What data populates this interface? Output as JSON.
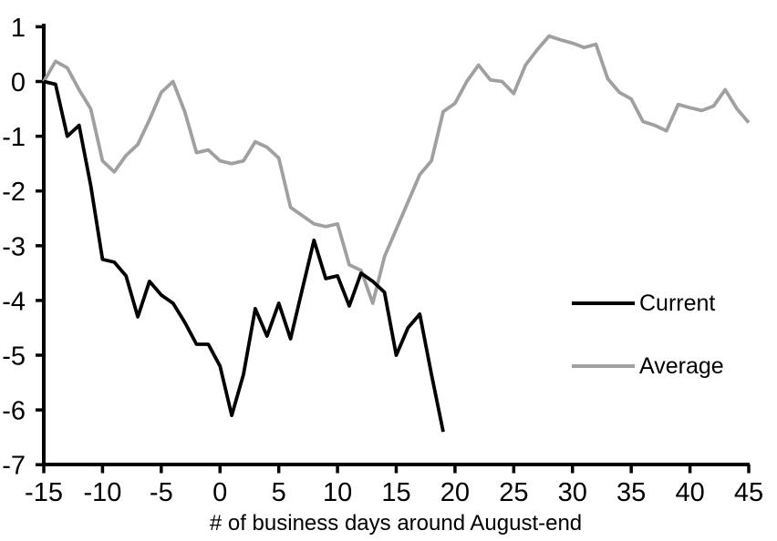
{
  "chart_data": {
    "type": "line",
    "title": "",
    "xlabel": "# of business days around August-end",
    "ylabel": "",
    "xlim": [
      -15,
      45
    ],
    "ylim": [
      -7,
      1
    ],
    "x_ticks": [
      -15,
      -10,
      -5,
      0,
      5,
      10,
      15,
      20,
      25,
      30,
      35,
      40,
      45
    ],
    "y_ticks": [
      1,
      0,
      -1,
      -2,
      -3,
      -4,
      -5,
      -6,
      -7
    ],
    "grid": false,
    "legend_position": "right-middle",
    "series": [
      {
        "name": "Current",
        "color": "#000000",
        "x": [
          -15,
          -14,
          -13,
          -12,
          -11,
          -10,
          -9,
          -8,
          -7,
          -6,
          -5,
          -4,
          -3,
          -2,
          -1,
          0,
          1,
          2,
          3,
          4,
          5,
          6,
          7,
          8,
          9,
          10,
          11,
          12,
          13,
          14,
          15,
          16,
          17,
          18,
          19
        ],
        "values": [
          0,
          -0.05,
          -1.0,
          -0.8,
          -1.9,
          -3.25,
          -3.3,
          -3.55,
          -4.3,
          -3.65,
          -3.9,
          -4.05,
          -4.4,
          -4.8,
          -4.8,
          -5.2,
          -6.1,
          -5.35,
          -4.15,
          -4.65,
          -4.05,
          -4.7,
          -3.8,
          -2.9,
          -3.6,
          -3.55,
          -4.1,
          -3.5,
          -3.65,
          -3.85,
          -5.0,
          -4.5,
          -4.25,
          -5.35,
          -6.4
        ]
      },
      {
        "name": "Average",
        "color": "#a0a0a0",
        "x": [
          -15,
          -14,
          -13,
          -12,
          -11,
          -10,
          -9,
          -8,
          -7,
          -6,
          -5,
          -4,
          -3,
          -2,
          -1,
          0,
          1,
          2,
          3,
          4,
          5,
          6,
          7,
          8,
          9,
          10,
          11,
          12,
          13,
          14,
          15,
          16,
          17,
          18,
          19,
          20,
          21,
          22,
          23,
          24,
          25,
          26,
          27,
          28,
          29,
          30,
          31,
          32,
          33,
          34,
          35,
          36,
          37,
          38,
          39,
          40,
          41,
          42,
          43,
          44,
          45
        ],
        "values": [
          0,
          0.37,
          0.25,
          -0.15,
          -0.5,
          -1.45,
          -1.65,
          -1.35,
          -1.15,
          -0.7,
          -0.2,
          0.0,
          -0.55,
          -1.3,
          -1.25,
          -1.45,
          -1.5,
          -1.45,
          -1.1,
          -1.2,
          -1.4,
          -2.3,
          -2.45,
          -2.6,
          -2.65,
          -2.6,
          -3.35,
          -3.45,
          -4.05,
          -3.2,
          -2.7,
          -2.2,
          -1.7,
          -1.45,
          -0.55,
          -0.4,
          0.0,
          0.3,
          0.03,
          0.0,
          -0.22,
          0.3,
          0.58,
          0.83,
          0.76,
          0.7,
          0.62,
          0.68,
          0.05,
          -0.2,
          -0.32,
          -0.73,
          -0.8,
          -0.9,
          -0.42,
          -0.48,
          -0.53,
          -0.45,
          -0.15,
          -0.5,
          -0.75
        ]
      }
    ]
  },
  "colors": {
    "background": "#ffffff",
    "axis": "#000000",
    "current_line": "#000000",
    "average_line": "#a0a0a0"
  },
  "legend": {
    "items": [
      {
        "label": "Current"
      },
      {
        "label": "Average"
      }
    ]
  }
}
